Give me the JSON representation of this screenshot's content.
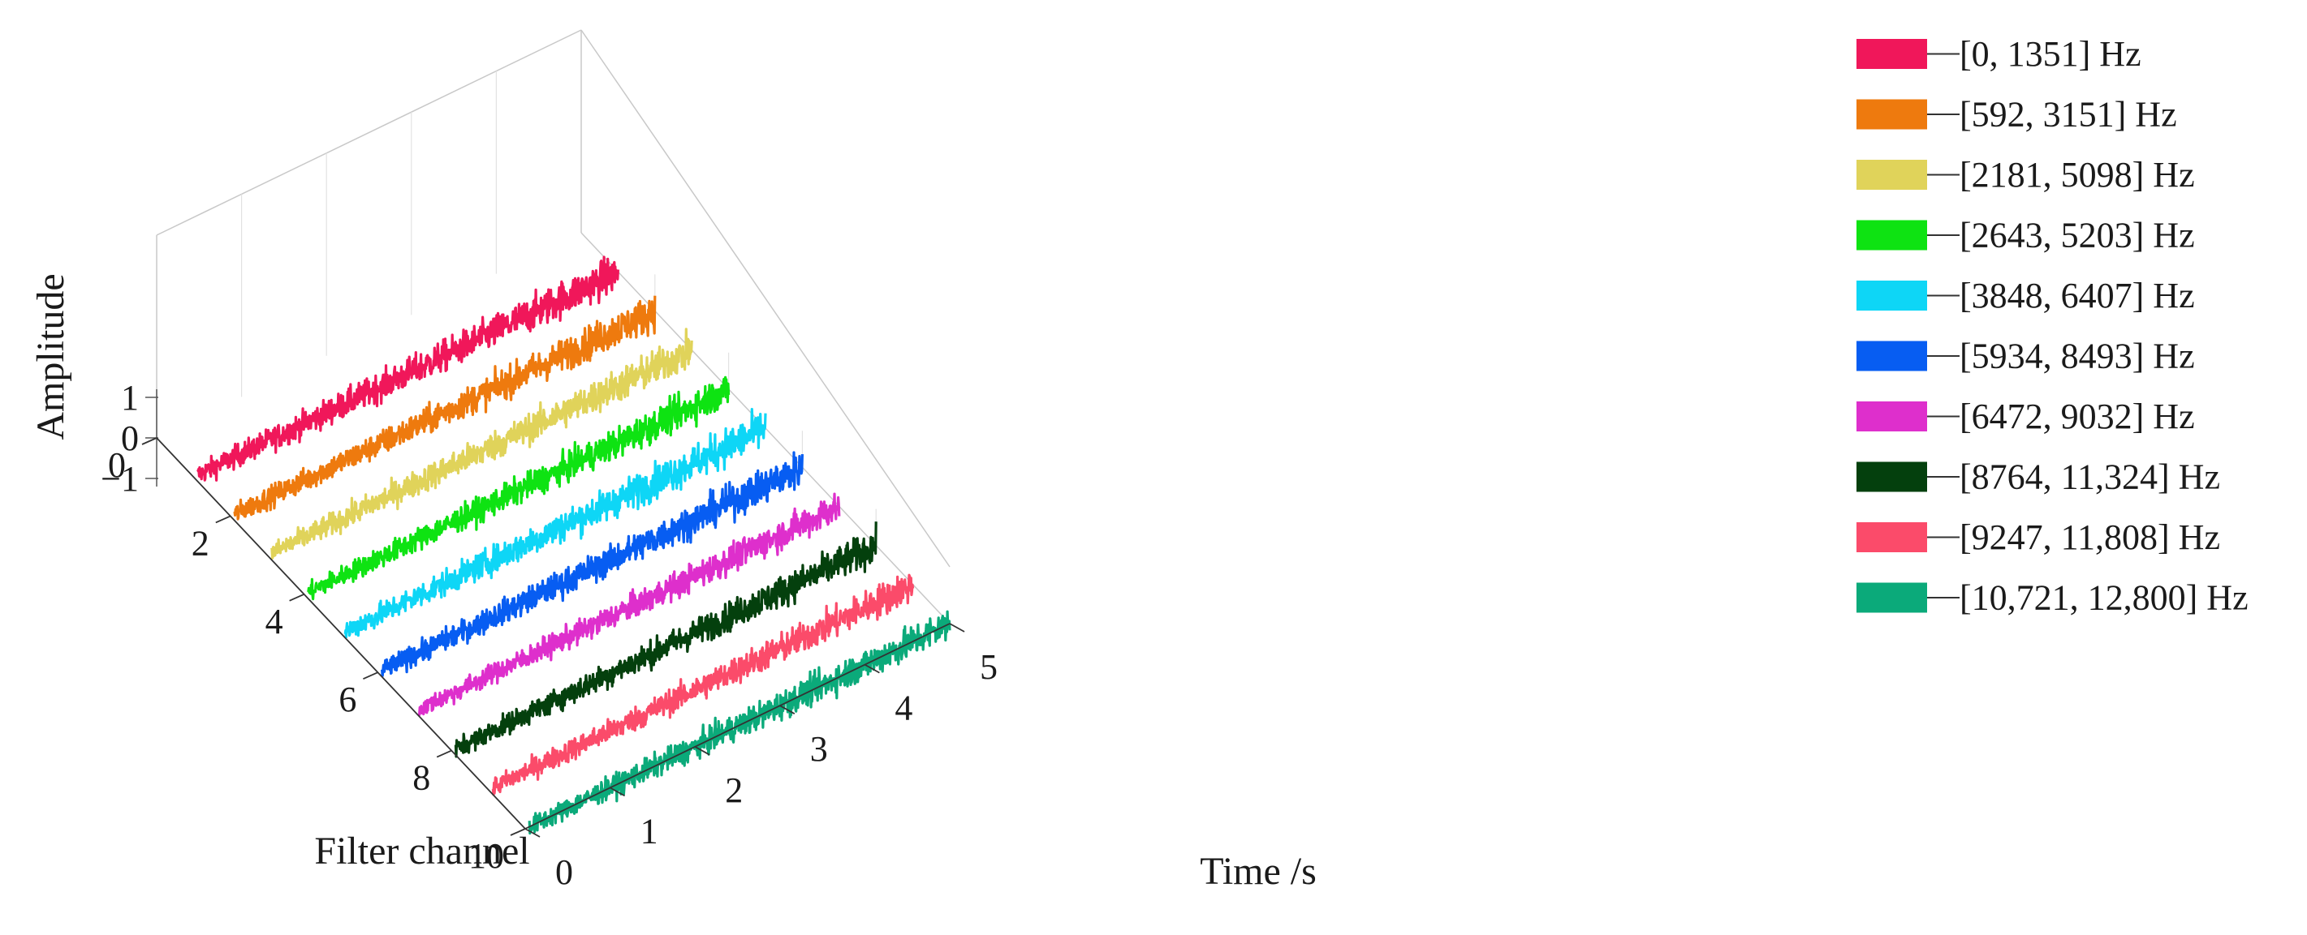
{
  "chart_data": {
    "type": "line",
    "view": "3d-waterfall",
    "xlabel": "Time /s",
    "ylabel": "Filter channel",
    "zlabel": "Amplitude",
    "xlim": [
      0,
      5
    ],
    "ylim": [
      0,
      10
    ],
    "zlim": [
      -1,
      1
    ],
    "xticks": [
      "0",
      "1",
      "2",
      "3",
      "4",
      "5"
    ],
    "yticks": [
      "0",
      "2",
      "4",
      "6",
      "8",
      "10"
    ],
    "zticks": [
      "−1",
      "0",
      "1"
    ],
    "grid": true,
    "legend_position": "right",
    "series": [
      {
        "name": "[0, 1351] Hz",
        "channel": 1,
        "color": "#f0175a",
        "amplitude": 0.9
      },
      {
        "name": "[592, 3151] Hz",
        "channel": 2,
        "color": "#ee7a0e",
        "amplitude": 0.85
      },
      {
        "name": "[2181, 5098] Hz",
        "channel": 3,
        "color": "#e0d35a",
        "amplitude": 0.85
      },
      {
        "name": "[2643, 5203] Hz",
        "channel": 4,
        "color": "#0ee312",
        "amplitude": 0.8
      },
      {
        "name": "[3848, 6407] Hz",
        "channel": 5,
        "color": "#0ed6f6",
        "amplitude": 0.9
      },
      {
        "name": "[5934, 8493] Hz",
        "channel": 6,
        "color": "#075df2",
        "amplitude": 0.85
      },
      {
        "name": "[6472, 9032] Hz",
        "channel": 7,
        "color": "#de2fcc",
        "amplitude": 0.75
      },
      {
        "name": "[8764, 11,324] Hz",
        "channel": 8,
        "color": "#04400d",
        "amplitude": 0.8
      },
      {
        "name": "[9247, 11,808] Hz",
        "channel": 9,
        "color": "#fb4b6a",
        "amplitude": 0.8
      },
      {
        "name": "[10,721, 12,800] Hz",
        "channel": 10,
        "color": "#0baa7a",
        "amplitude": 0.8
      }
    ]
  }
}
